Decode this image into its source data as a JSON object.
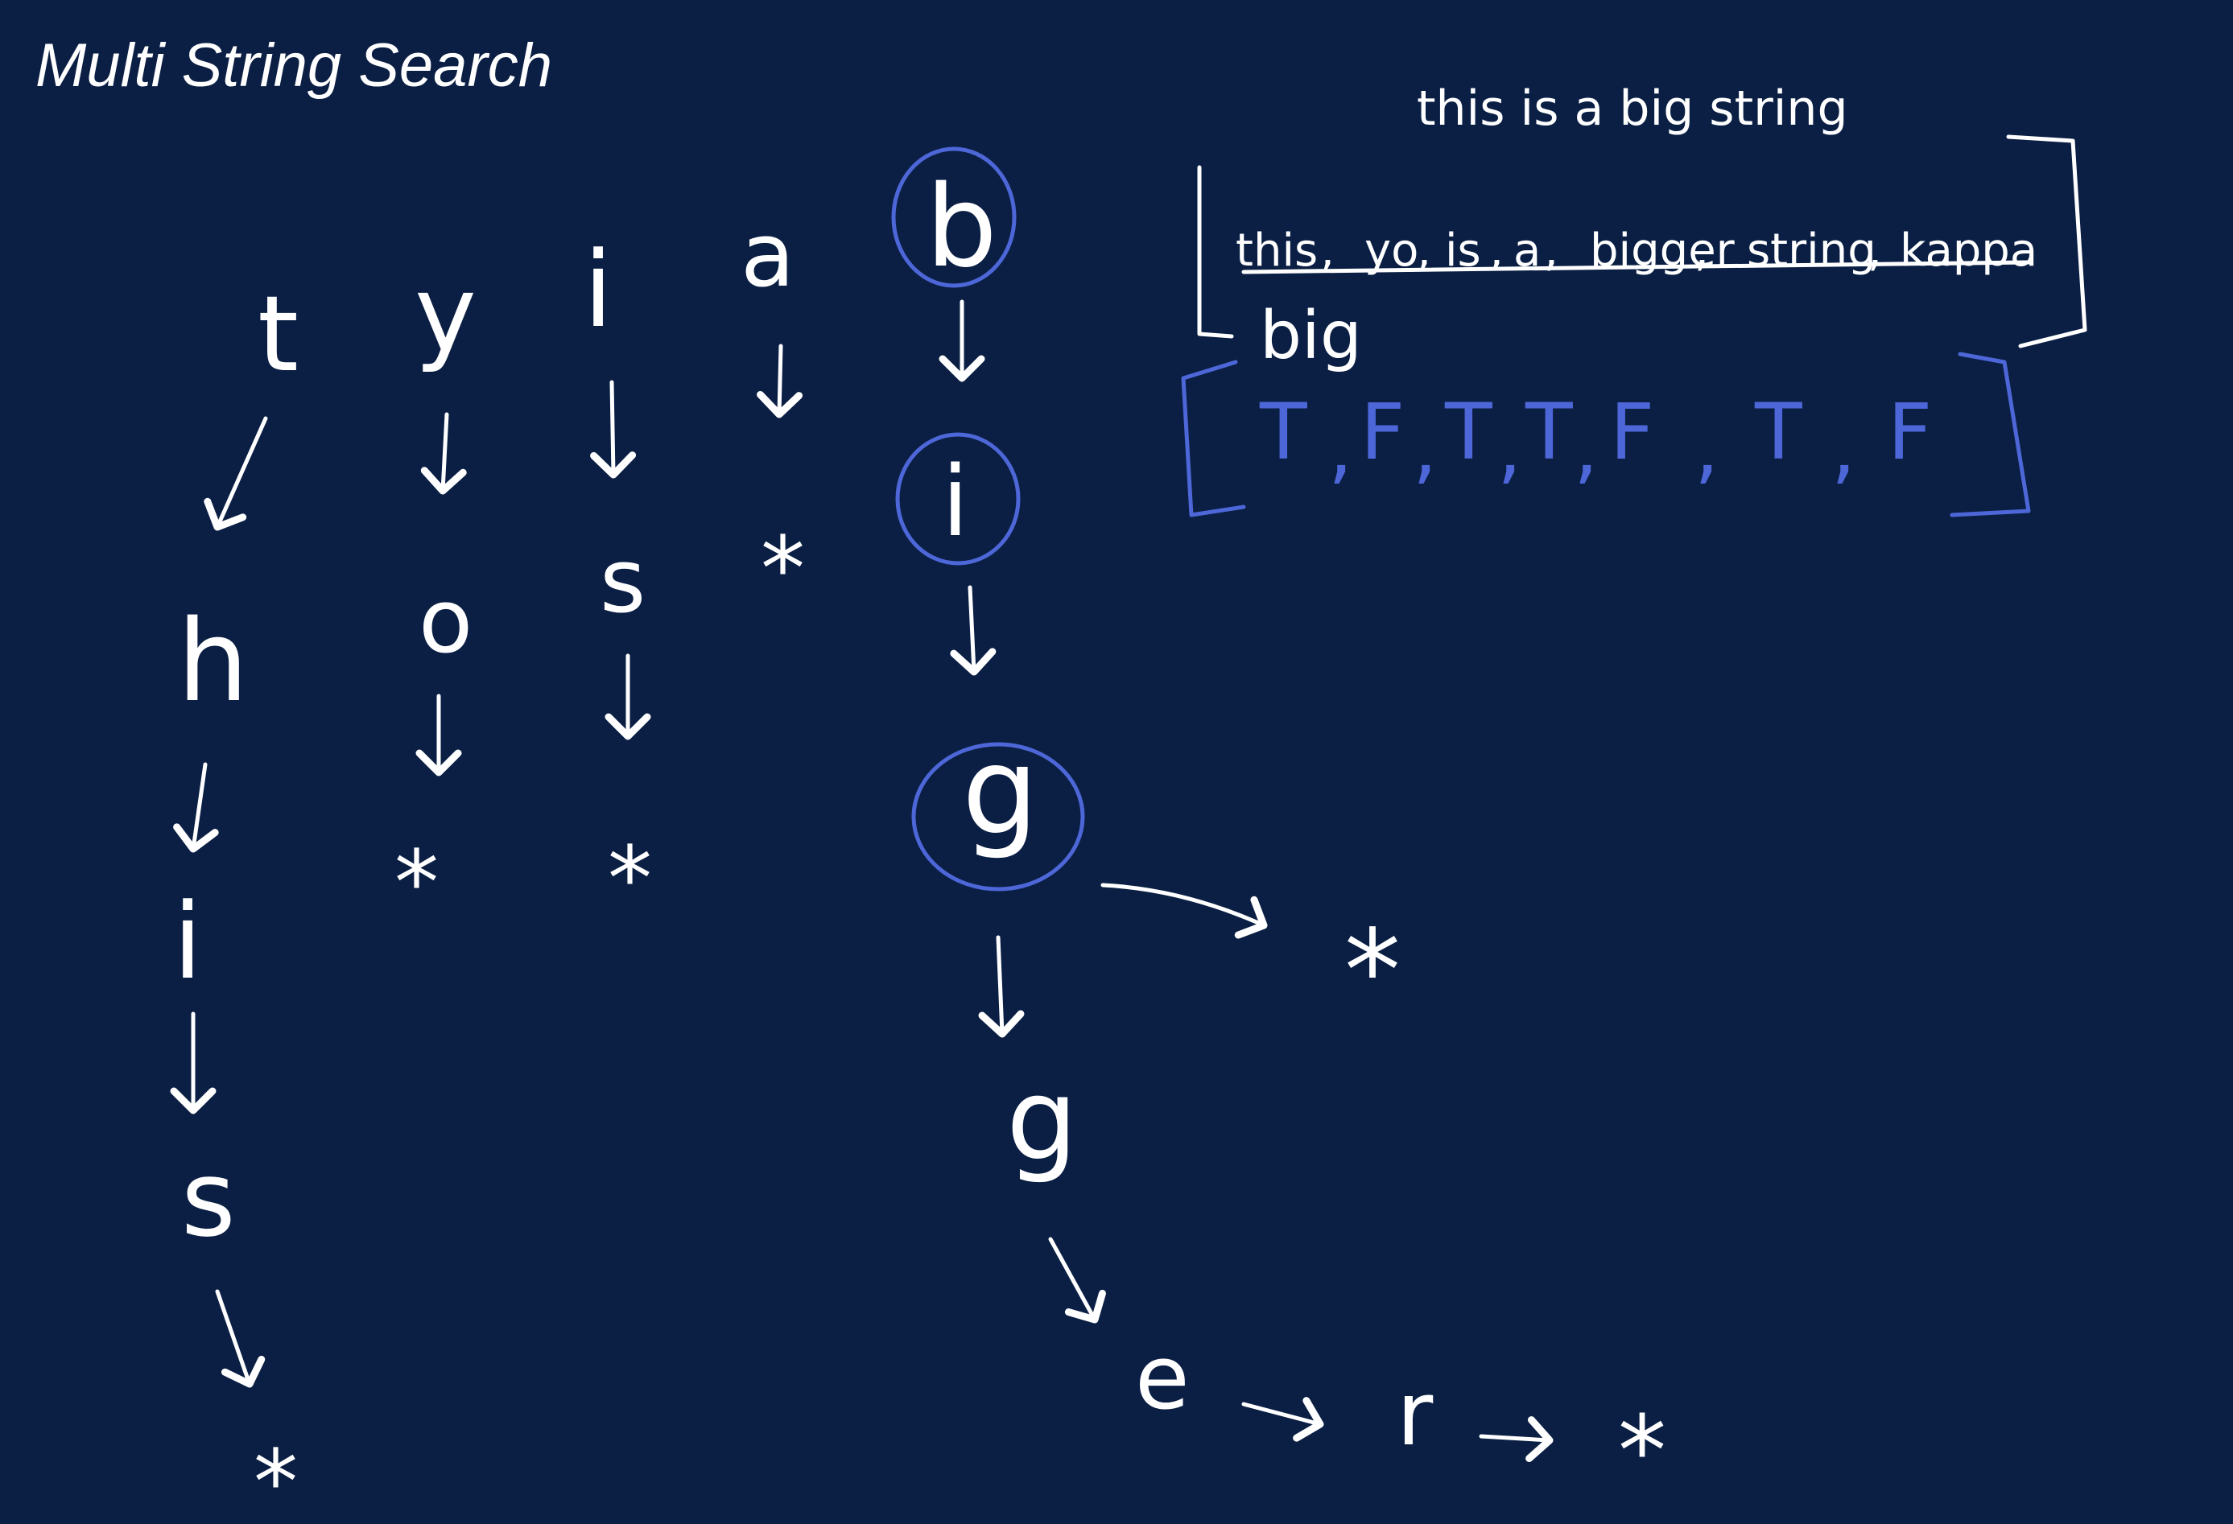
{
  "title": "Multi String Search",
  "big_string": "this is a big string",
  "small_strings": [
    "this",
    "yo",
    "is",
    "a",
    "bigger",
    "string",
    "kappa"
  ],
  "current_string": "big",
  "result_booleans": [
    "T",
    "F",
    "T",
    "T",
    "F",
    "T",
    "F"
  ],
  "trie": {
    "end_symbol": "*",
    "branch_t": [
      "t",
      "h",
      "i",
      "s"
    ],
    "branch_y": [
      "y",
      "o"
    ],
    "branch_i": [
      "i",
      "s"
    ],
    "branch_a": [
      "a"
    ],
    "branch_b": [
      "b",
      "i",
      "g",
      "g",
      "e",
      "r"
    ]
  },
  "colors": {
    "background": "#0b1f44",
    "chalk": "#ffffff",
    "highlight": "#4d67d8"
  }
}
